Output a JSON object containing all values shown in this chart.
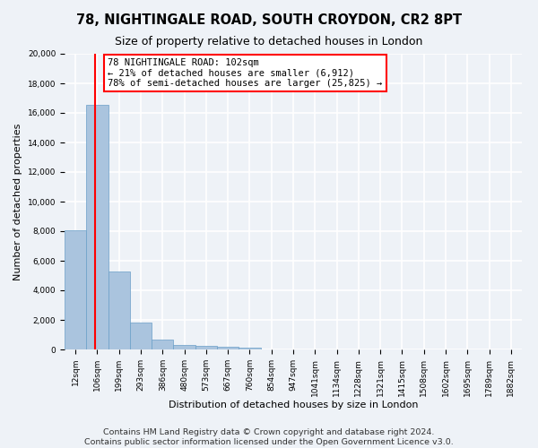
{
  "title": "78, NIGHTINGALE ROAD, SOUTH CROYDON, CR2 8PT",
  "subtitle": "Size of property relative to detached houses in London",
  "xlabel": "Distribution of detached houses by size in London",
  "ylabel": "Number of detached properties",
  "bar_color": "#aac4de",
  "bar_edge_color": "#6a9fc8",
  "background_color": "#eef2f7",
  "grid_color": "white",
  "categories": [
    "12sqm",
    "106sqm",
    "199sqm",
    "293sqm",
    "386sqm",
    "480sqm",
    "573sqm",
    "667sqm",
    "760sqm",
    "854sqm",
    "947sqm",
    "1041sqm",
    "1134sqm",
    "1228sqm",
    "1321sqm",
    "1415sqm",
    "1508sqm",
    "1602sqm",
    "1695sqm",
    "1789sqm",
    "1882sqm"
  ],
  "values": [
    8050,
    16550,
    5300,
    1820,
    650,
    310,
    215,
    165,
    135,
    0,
    0,
    0,
    0,
    0,
    0,
    0,
    0,
    0,
    0,
    0,
    0
  ],
  "red_line_x": 0.88,
  "annotation_text": "78 NIGHTINGALE ROAD: 102sqm\n← 21% of detached houses are smaller (6,912)\n78% of semi-detached houses are larger (25,825) →",
  "annotation_box_color": "white",
  "annotation_box_edge_color": "red",
  "ylim": [
    0,
    20000
  ],
  "yticks": [
    0,
    2000,
    4000,
    6000,
    8000,
    10000,
    12000,
    14000,
    16000,
    18000,
    20000
  ],
  "footer_line1": "Contains HM Land Registry data © Crown copyright and database right 2024.",
  "footer_line2": "Contains public sector information licensed under the Open Government Licence v3.0.",
  "title_fontsize": 10.5,
  "subtitle_fontsize": 9,
  "annotation_fontsize": 7.5,
  "footer_fontsize": 6.8,
  "tick_fontsize": 6.5,
  "ylabel_fontsize": 8,
  "xlabel_fontsize": 8
}
